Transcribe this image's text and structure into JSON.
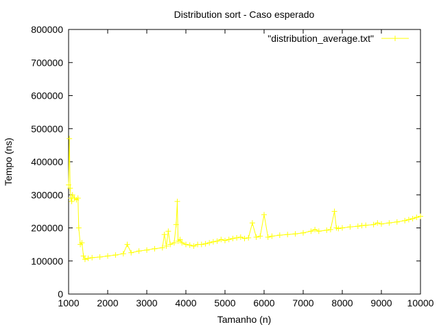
{
  "chart_data": {
    "type": "line",
    "title": "Distribution sort - Caso esperado",
    "xlabel": "Tamanho (n)",
    "ylabel": "Tempo (ns)",
    "xlim": [
      1000,
      10000
    ],
    "ylim": [
      0,
      800000
    ],
    "x_ticks": [
      "1000",
      "2000",
      "3000",
      "4000",
      "5000",
      "6000",
      "7000",
      "8000",
      "9000",
      "10000"
    ],
    "y_ticks": [
      "0",
      "100000",
      "200000",
      "300000",
      "400000",
      "500000",
      "600000",
      "700000",
      "800000"
    ],
    "grid": false,
    "legend_position": "top-right",
    "series": [
      {
        "name": "\"distribution_average.txt\"",
        "color": "#ffff00",
        "marker": "plus",
        "x": [
          1000,
          1020,
          1040,
          1060,
          1080,
          1100,
          1150,
          1200,
          1240,
          1260,
          1300,
          1340,
          1380,
          1420,
          1500,
          1600,
          1800,
          2000,
          2200,
          2400,
          2500,
          2600,
          2800,
          3000,
          3200,
          3400,
          3450,
          3500,
          3550,
          3600,
          3700,
          3750,
          3780,
          3800,
          3850,
          3900,
          4000,
          4100,
          4200,
          4300,
          4400,
          4500,
          4600,
          4700,
          4800,
          4900,
          5000,
          5100,
          5200,
          5300,
          5400,
          5500,
          5600,
          5700,
          5800,
          5900,
          6000,
          6100,
          6200,
          6400,
          6600,
          6800,
          7000,
          7200,
          7300,
          7400,
          7600,
          7700,
          7800,
          7850,
          7900,
          8000,
          8200,
          8400,
          8500,
          8600,
          8800,
          8900,
          9000,
          9200,
          9400,
          9600,
          9700,
          9800,
          9900,
          10000
        ],
        "y": [
          330000,
          470000,
          320000,
          290000,
          280000,
          300000,
          290000,
          285000,
          290000,
          200000,
          150000,
          155000,
          115000,
          105000,
          108000,
          110000,
          112000,
          115000,
          118000,
          122000,
          150000,
          125000,
          130000,
          133000,
          137000,
          140000,
          180000,
          145000,
          190000,
          150000,
          155000,
          210000,
          280000,
          160000,
          165000,
          155000,
          150000,
          148000,
          145000,
          150000,
          150000,
          152000,
          155000,
          158000,
          160000,
          165000,
          162000,
          165000,
          168000,
          170000,
          172000,
          168000,
          170000,
          215000,
          172000,
          175000,
          240000,
          172000,
          175000,
          178000,
          180000,
          182000,
          185000,
          190000,
          195000,
          190000,
          193000,
          195000,
          250000,
          200000,
          198000,
          200000,
          203000,
          205000,
          207000,
          208000,
          210000,
          215000,
          212000,
          215000,
          218000,
          222000,
          225000,
          228000,
          232000,
          235000
        ]
      }
    ]
  }
}
